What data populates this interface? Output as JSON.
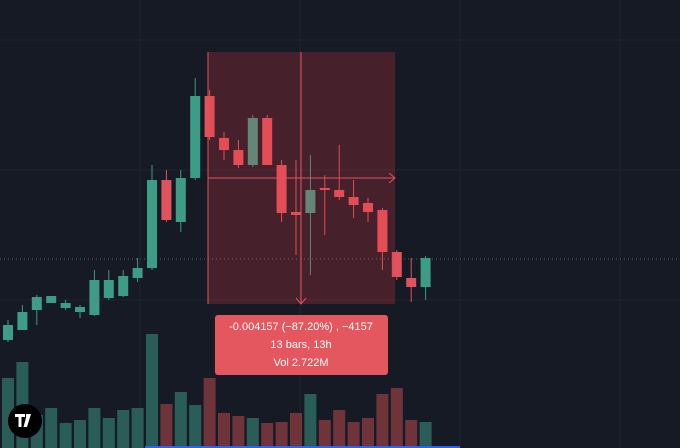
{
  "chart_data": {
    "type": "candlestick",
    "ylim": [
      0,
      448
    ],
    "up_color": "#3d9c86",
    "down_color": "#e0535c",
    "volume_up_color": "#2b5d58",
    "volume_down_color": "#6e343a",
    "open": [
      108,
      118,
      138,
      145,
      140,
      136,
      133,
      150,
      152,
      170,
      180,
      268,
      226,
      270,
      352,
      310,
      298,
      283,
      330,
      283,
      236,
      235,
      260,
      258,
      251,
      245,
      238,
      196,
      170,
      161
    ],
    "high": [
      128,
      143,
      153,
      152,
      148,
      143,
      178,
      178,
      178,
      190,
      283,
      278,
      278,
      370,
      358,
      316,
      308,
      333,
      333,
      288,
      288,
      293,
      273,
      303,
      268,
      250,
      240,
      198,
      190,
      192
    ],
    "low": [
      106,
      118,
      123,
      145,
      138,
      130,
      132,
      148,
      151,
      166,
      178,
      226,
      216,
      268,
      308,
      288,
      280,
      281,
      283,
      226,
      193,
      173,
      213,
      248,
      230,
      226,
      178,
      168,
      146,
      148
    ],
    "close": [
      123,
      136,
      151,
      152,
      145,
      141,
      168,
      168,
      172,
      180,
      268,
      228,
      270,
      352,
      311,
      298,
      283,
      330,
      283,
      235,
      233,
      258,
      258,
      251,
      243,
      236,
      196,
      171,
      161,
      190
    ],
    "volume": [
      70,
      86,
      33,
      40,
      25,
      28,
      40,
      30,
      38,
      40,
      114,
      44,
      56,
      43,
      70,
      35,
      32,
      30,
      25,
      26,
      35,
      54,
      28,
      38,
      26,
      30,
      54,
      60,
      28,
      26
    ],
    "measure": {
      "change": "-0.004157 (−87.20%) , −4157",
      "bars": "13 bars, 13h",
      "volume": "Vol 2.722M"
    }
  }
}
